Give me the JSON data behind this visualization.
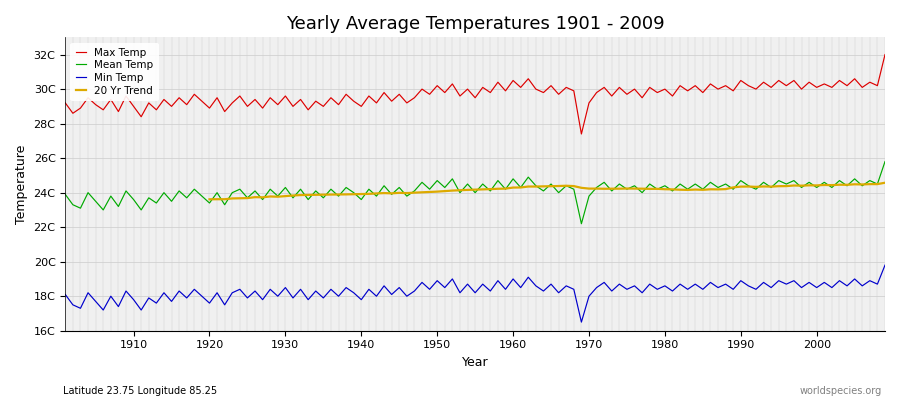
{
  "title": "Yearly Average Temperatures 1901 - 2009",
  "xlabel": "Year",
  "ylabel": "Temperature",
  "lat_lon_label": "Latitude 23.75 Longitude 85.25",
  "watermark": "worldspecies.org",
  "year_start": 1901,
  "year_end": 2009,
  "ylim": [
    16,
    33
  ],
  "yticks": [
    16,
    18,
    20,
    22,
    24,
    26,
    28,
    30,
    32
  ],
  "ytick_labels": [
    "16C",
    "18C",
    "20C",
    "22C",
    "24C",
    "26C",
    "28C",
    "30C",
    "32C"
  ],
  "xticks": [
    1910,
    1920,
    1930,
    1940,
    1950,
    1960,
    1970,
    1980,
    1990,
    2000
  ],
  "colors": {
    "max_temp": "#dd0000",
    "mean_temp": "#00aa00",
    "min_temp": "#0000cc",
    "trend": "#ddaa00",
    "background": "#f0f0f0",
    "grid": "#cccccc"
  },
  "legend": {
    "max_label": "Max Temp",
    "mean_label": "Mean Temp",
    "min_label": "Min Temp",
    "trend_label": "20 Yr Trend"
  },
  "max_temps": [
    29.2,
    28.6,
    28.9,
    29.5,
    29.1,
    28.8,
    29.4,
    28.7,
    29.6,
    29.0,
    28.4,
    29.2,
    28.8,
    29.4,
    29.0,
    29.5,
    29.1,
    29.7,
    29.3,
    28.9,
    29.5,
    28.7,
    29.2,
    29.6,
    29.0,
    29.4,
    28.9,
    29.5,
    29.1,
    29.6,
    29.0,
    29.4,
    28.8,
    29.3,
    29.0,
    29.5,
    29.1,
    29.7,
    29.3,
    29.0,
    29.6,
    29.2,
    29.8,
    29.3,
    29.7,
    29.2,
    29.5,
    30.0,
    29.7,
    30.2,
    29.8,
    30.3,
    29.6,
    30.0,
    29.5,
    30.1,
    29.8,
    30.4,
    29.9,
    30.5,
    30.1,
    30.6,
    30.0,
    29.8,
    30.2,
    29.7,
    30.1,
    29.9,
    27.4,
    29.2,
    29.8,
    30.1,
    29.6,
    30.1,
    29.7,
    30.0,
    29.5,
    30.1,
    29.8,
    30.0,
    29.6,
    30.2,
    29.9,
    30.2,
    29.8,
    30.3,
    30.0,
    30.2,
    29.9,
    30.5,
    30.2,
    30.0,
    30.4,
    30.1,
    30.5,
    30.2,
    30.5,
    30.0,
    30.4,
    30.1,
    30.3,
    30.1,
    30.5,
    30.2,
    30.6,
    30.1,
    30.4,
    30.2,
    32.0
  ],
  "mean_temps": [
    23.9,
    23.3,
    23.1,
    24.0,
    23.5,
    23.0,
    23.8,
    23.2,
    24.1,
    23.6,
    23.0,
    23.7,
    23.4,
    24.0,
    23.5,
    24.1,
    23.7,
    24.2,
    23.8,
    23.4,
    24.0,
    23.3,
    24.0,
    24.2,
    23.7,
    24.1,
    23.6,
    24.2,
    23.8,
    24.3,
    23.7,
    24.2,
    23.6,
    24.1,
    23.7,
    24.2,
    23.8,
    24.3,
    24.0,
    23.6,
    24.2,
    23.8,
    24.4,
    23.9,
    24.3,
    23.8,
    24.1,
    24.6,
    24.2,
    24.7,
    24.3,
    24.8,
    24.0,
    24.5,
    24.0,
    24.5,
    24.1,
    24.7,
    24.2,
    24.8,
    24.3,
    24.9,
    24.4,
    24.1,
    24.5,
    24.0,
    24.4,
    24.2,
    22.2,
    23.8,
    24.3,
    24.6,
    24.1,
    24.5,
    24.2,
    24.4,
    24.0,
    24.5,
    24.2,
    24.4,
    24.1,
    24.5,
    24.2,
    24.5,
    24.2,
    24.6,
    24.3,
    24.5,
    24.2,
    24.7,
    24.4,
    24.2,
    24.6,
    24.3,
    24.7,
    24.5,
    24.7,
    24.3,
    24.6,
    24.3,
    24.6,
    24.3,
    24.7,
    24.4,
    24.8,
    24.4,
    24.7,
    24.5,
    25.8
  ],
  "min_temps": [
    18.1,
    17.5,
    17.3,
    18.2,
    17.7,
    17.2,
    18.0,
    17.4,
    18.3,
    17.8,
    17.2,
    17.9,
    17.6,
    18.2,
    17.7,
    18.3,
    17.9,
    18.4,
    18.0,
    17.6,
    18.2,
    17.5,
    18.2,
    18.4,
    17.9,
    18.3,
    17.8,
    18.4,
    18.0,
    18.5,
    17.9,
    18.4,
    17.8,
    18.3,
    17.9,
    18.4,
    18.0,
    18.5,
    18.2,
    17.8,
    18.4,
    18.0,
    18.6,
    18.1,
    18.5,
    18.0,
    18.3,
    18.8,
    18.4,
    18.9,
    18.5,
    19.0,
    18.2,
    18.7,
    18.2,
    18.7,
    18.3,
    18.9,
    18.4,
    19.0,
    18.5,
    19.1,
    18.6,
    18.3,
    18.7,
    18.2,
    18.6,
    18.4,
    16.5,
    18.0,
    18.5,
    18.8,
    18.3,
    18.7,
    18.4,
    18.6,
    18.2,
    18.7,
    18.4,
    18.6,
    18.3,
    18.7,
    18.4,
    18.7,
    18.4,
    18.8,
    18.5,
    18.7,
    18.4,
    18.9,
    18.6,
    18.4,
    18.8,
    18.5,
    18.9,
    18.7,
    18.9,
    18.5,
    18.8,
    18.5,
    18.8,
    18.5,
    18.9,
    18.6,
    19.0,
    18.6,
    18.9,
    18.7,
    19.8
  ]
}
